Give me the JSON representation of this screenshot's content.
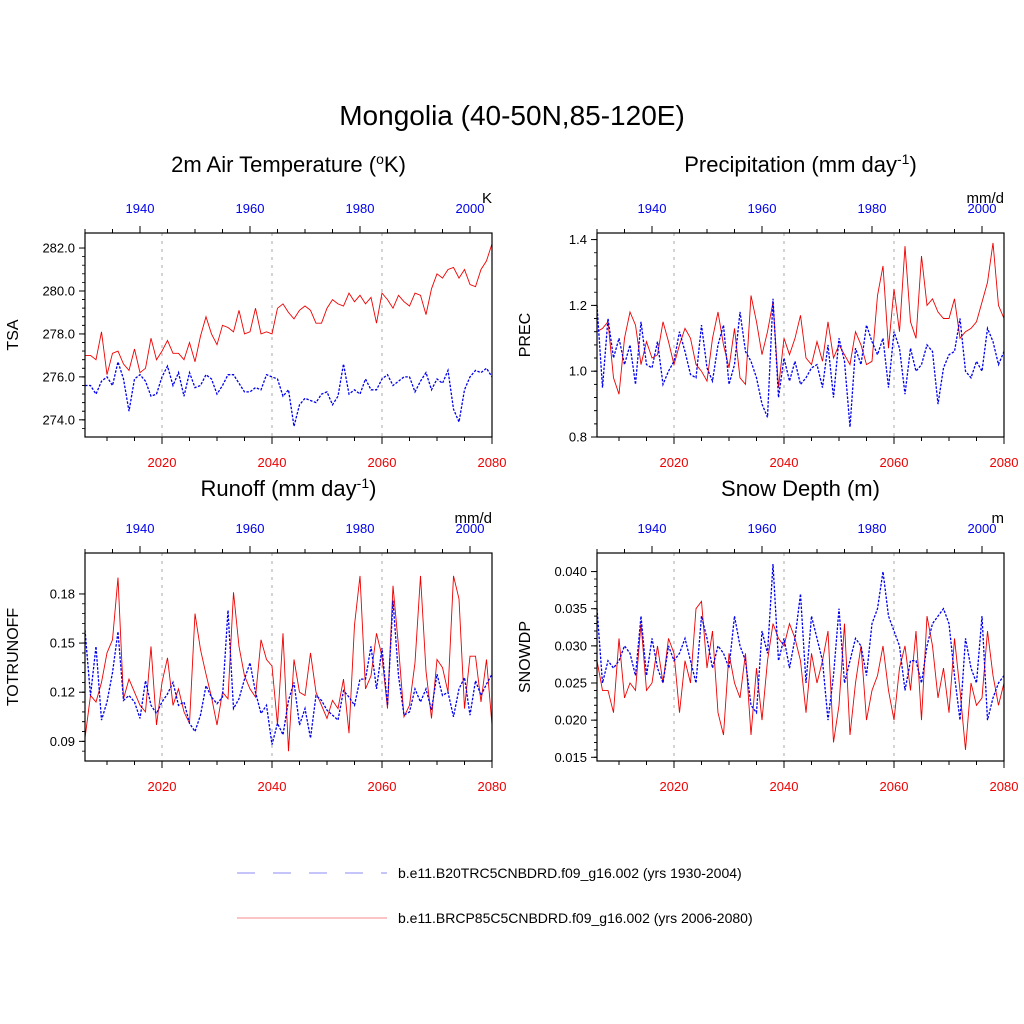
{
  "page": {
    "title": "Mongolia (40-50N,85-120E)"
  },
  "colors": {
    "hist": "#0000ee",
    "future": "#ee0000",
    "grid": "#aaaaaa"
  },
  "legend": {
    "items": [
      {
        "label": "b.e11.B20TRC5CNBDRD.f09_g16.002 (yrs 1930-2004)",
        "color": "#0000ee",
        "style": "dashed"
      },
      {
        "label": "b.e11.BRCP85C5CNBDRD.f09_g16.002 (yrs 2006-2080)",
        "color": "#ee0000",
        "style": "solid"
      }
    ]
  },
  "chart_data": [
    {
      "type": "line",
      "title_main": "2m Air Temperature (",
      "title_sup": "o",
      "title_tail": "K)",
      "ylabel": "TSA",
      "units": "K",
      "ylim": [
        273.2,
        282.7
      ],
      "yticks": [
        274.0,
        276.0,
        278.0,
        280.0,
        282.0
      ],
      "ytick_labels": [
        "274.0",
        "276.0",
        "278.0",
        "280.0",
        "282.0"
      ],
      "future_x": [
        2006,
        2080
      ],
      "hist_x": [
        1930,
        2004
      ],
      "future_ticks": [
        "2020",
        "2040",
        "2060",
        "2080"
      ],
      "hist_ticks": [
        "1940",
        "1960",
        "1980",
        "2000"
      ],
      "series": [
        {
          "name": "b.e11.BRCP85C5CNBDRD.f09_g16.002 (yrs 2006-2080)",
          "period": "future",
          "values": [
            277.0,
            277.0,
            276.8,
            278.1,
            276.1,
            277.1,
            277.2,
            276.6,
            276.3,
            277.3,
            276.2,
            276.4,
            277.8,
            276.8,
            277.2,
            277.7,
            277.1,
            277.1,
            276.8,
            277.6,
            276.7,
            277.9,
            278.8,
            278.0,
            277.5,
            278.4,
            278.3,
            278.1,
            279.1,
            278.0,
            278.1,
            279.2,
            278.0,
            278.1,
            278.0,
            279.2,
            279.4,
            279.0,
            278.7,
            279.1,
            279.3,
            279.1,
            278.5,
            278.5,
            279.2,
            279.6,
            279.4,
            279.3,
            279.9,
            279.5,
            279.8,
            279.4,
            279.7,
            278.5,
            279.9,
            279.6,
            279.2,
            279.8,
            279.5,
            279.3,
            279.9,
            279.8,
            278.9,
            280.1,
            280.8,
            280.6,
            281.0,
            281.1,
            280.6,
            281.0,
            280.3,
            280.2,
            281.0,
            281.4,
            282.2
          ]
        },
        {
          "name": "b.e11.B20TRC5CNBDRD.f09_g16.002 (yrs 1930-2004)",
          "period": "hist",
          "values": [
            275.6,
            275.6,
            275.2,
            275.8,
            276.0,
            275.6,
            276.7,
            275.9,
            274.4,
            275.9,
            276.1,
            275.8,
            275.1,
            275.2,
            276.0,
            276.5,
            275.6,
            276.2,
            275.1,
            276.2,
            275.5,
            275.6,
            276.1,
            275.9,
            275.2,
            275.6,
            276.1,
            276.1,
            275.7,
            275.3,
            275.3,
            275.5,
            275.4,
            276.1,
            276.0,
            275.9,
            275.1,
            275.4,
            273.7,
            274.7,
            275.0,
            274.9,
            274.8,
            275.2,
            275.3,
            274.7,
            275.1,
            276.6,
            275.2,
            275.4,
            275.2,
            275.9,
            275.4,
            275.4,
            275.9,
            276.1,
            275.6,
            275.8,
            276.0,
            276.0,
            275.3,
            275.8,
            276.2,
            275.4,
            275.9,
            275.7,
            276.3,
            274.5,
            273.9,
            275.4,
            276.0,
            276.3,
            276.2,
            276.4,
            276.0
          ]
        }
      ]
    },
    {
      "type": "line",
      "title_main": "Precipitation (mm day",
      "title_sup": "-1",
      "title_tail": ")",
      "ylabel": "PREC",
      "units": "mm/d",
      "ylim": [
        0.8,
        1.42
      ],
      "yticks": [
        0.8,
        1.0,
        1.2,
        1.4
      ],
      "ytick_labels": [
        "0.8",
        "1.0",
        "1.2",
        "1.4"
      ],
      "future_x": [
        2006,
        2080
      ],
      "hist_x": [
        1930,
        2004
      ],
      "future_ticks": [
        "2020",
        "2040",
        "2060",
        "2080"
      ],
      "hist_ticks": [
        "1940",
        "1960",
        "1980",
        "2000"
      ],
      "series": [
        {
          "name": "b.e11.BRCP85C5CNBDRD.f09_g16.002 (yrs 2006-2080)",
          "period": "future",
          "values": [
            1.12,
            1.13,
            1.15,
            0.98,
            0.93,
            1.1,
            1.18,
            1.14,
            1.02,
            1.09,
            1.04,
            1.05,
            1.15,
            1.09,
            1.02,
            1.08,
            1.13,
            1.1,
            1.02,
            1.0,
            0.97,
            1.1,
            1.18,
            1.08,
            1.01,
            1.13,
            0.98,
            0.96,
            1.23,
            1.15,
            1.05,
            1.12,
            1.21,
            0.95,
            1.1,
            1.05,
            1.1,
            1.17,
            1.04,
            1.02,
            1.09,
            1.03,
            1.15,
            1.04,
            1.08,
            1.05,
            1.02,
            1.12,
            1.08,
            1.02,
            1.03,
            1.23,
            1.32,
            1.07,
            1.25,
            1.12,
            1.38,
            1.15,
            1.1,
            1.35,
            1.2,
            1.22,
            1.18,
            1.16,
            1.16,
            1.22,
            1.1,
            1.12,
            1.13,
            1.15,
            1.21,
            1.27,
            1.39,
            1.2,
            1.16
          ]
        },
        {
          "name": "b.e11.B20TRC5CNBDRD.f09_g16.002 (yrs 1930-2004)",
          "period": "hist",
          "values": [
            1.2,
            0.95,
            1.16,
            1.04,
            1.1,
            1.02,
            1.08,
            0.96,
            1.15,
            1.02,
            1.01,
            1.09,
            0.96,
            1.0,
            1.03,
            1.12,
            1.06,
            0.99,
            0.98,
            1.14,
            1.01,
            0.97,
            1.08,
            1.14,
            0.96,
            1.02,
            1.18,
            1.06,
            1.03,
            0.98,
            0.9,
            0.86,
            1.22,
            0.92,
            1.04,
            0.97,
            1.03,
            0.96,
            0.98,
            1.01,
            1.02,
            0.95,
            1.08,
            0.92,
            1.1,
            1.03,
            0.83,
            1.07,
            1.02,
            1.14,
            1.09,
            1.05,
            1.1,
            0.95,
            1.12,
            1.07,
            0.93,
            1.07,
            1.0,
            1.02,
            1.08,
            1.06,
            0.9,
            1.01,
            1.05,
            1.06,
            1.16,
            1.0,
            0.98,
            1.03,
            1.0,
            1.13,
            1.09,
            1.02,
            1.06
          ]
        }
      ]
    },
    {
      "type": "line",
      "title_main": "Runoff (mm day",
      "title_sup": "-1",
      "title_tail": ")",
      "ylabel": "TOTRUNOFF",
      "units": "mm/d",
      "ylim": [
        0.078,
        0.205
      ],
      "yticks": [
        0.09,
        0.12,
        0.15,
        0.18
      ],
      "ytick_labels": [
        "0.09",
        "0.12",
        "0.15",
        "0.18"
      ],
      "future_x": [
        2006,
        2080
      ],
      "hist_x": [
        1930,
        2004
      ],
      "future_ticks": [
        "2020",
        "2040",
        "2060",
        "2080"
      ],
      "hist_ticks": [
        "1940",
        "1960",
        "1980",
        "2000"
      ],
      "series": [
        {
          "name": "b.e11.BRCP85C5CNBDRD.f09_g16.002 (yrs 2006-2080)",
          "period": "future",
          "values": [
            0.092,
            0.118,
            0.114,
            0.126,
            0.144,
            0.152,
            0.19,
            0.116,
            0.128,
            0.12,
            0.112,
            0.108,
            0.148,
            0.1,
            0.126,
            0.141,
            0.112,
            0.122,
            0.108,
            0.101,
            0.168,
            0.146,
            0.131,
            0.117,
            0.1,
            0.12,
            0.116,
            0.181,
            0.148,
            0.13,
            0.122,
            0.117,
            0.152,
            0.14,
            0.136,
            0.1,
            0.156,
            0.084,
            0.14,
            0.12,
            0.118,
            0.144,
            0.12,
            0.112,
            0.104,
            0.115,
            0.11,
            0.128,
            0.095,
            0.161,
            0.191,
            0.122,
            0.13,
            0.156,
            0.142,
            0.11,
            0.185,
            0.148,
            0.105,
            0.112,
            0.138,
            0.191,
            0.133,
            0.104,
            0.14,
            0.135,
            0.12,
            0.191,
            0.177,
            0.11,
            0.142,
            0.142,
            0.114,
            0.14,
            0.1
          ]
        },
        {
          "name": "b.e11.B20TRC5CNBDRD.f09_g16.002 (yrs 1930-2004)",
          "period": "hist",
          "values": [
            0.158,
            0.118,
            0.148,
            0.103,
            0.114,
            0.132,
            0.157,
            0.115,
            0.118,
            0.114,
            0.104,
            0.127,
            0.112,
            0.107,
            0.114,
            0.119,
            0.126,
            0.112,
            0.114,
            0.101,
            0.096,
            0.106,
            0.124,
            0.117,
            0.113,
            0.117,
            0.17,
            0.11,
            0.116,
            0.128,
            0.138,
            0.12,
            0.107,
            0.112,
            0.088,
            0.101,
            0.094,
            0.115,
            0.126,
            0.1,
            0.11,
            0.092,
            0.118,
            0.115,
            0.109,
            0.106,
            0.103,
            0.121,
            0.117,
            0.112,
            0.128,
            0.128,
            0.148,
            0.122,
            0.147,
            0.112,
            0.176,
            0.13,
            0.106,
            0.108,
            0.122,
            0.114,
            0.122,
            0.109,
            0.131,
            0.118,
            0.12,
            0.105,
            0.122,
            0.129,
            0.106,
            0.127,
            0.118,
            0.125,
            0.131
          ]
        }
      ]
    },
    {
      "type": "line",
      "title_main": "Snow Depth (m)",
      "title_sup": "",
      "title_tail": "",
      "ylabel": "SNOWDP",
      "units": "m",
      "ylim": [
        0.0145,
        0.0425
      ],
      "yticks": [
        0.015,
        0.02,
        0.025,
        0.03,
        0.035,
        0.04
      ],
      "ytick_labels": [
        "0.015",
        "0.020",
        "0.025",
        "0.030",
        "0.035",
        "0.040"
      ],
      "future_x": [
        2006,
        2080
      ],
      "hist_x": [
        1930,
        2004
      ],
      "future_ticks": [
        "2020",
        "2040",
        "2060",
        "2080"
      ],
      "hist_ticks": [
        "1940",
        "1960",
        "1980",
        "2000"
      ],
      "series": [
        {
          "name": "b.e11.BRCP85C5CNBDRD.f09_g16.002 (yrs 2006-2080)",
          "period": "future",
          "values": [
            0.028,
            0.024,
            0.024,
            0.021,
            0.031,
            0.023,
            0.025,
            0.024,
            0.033,
            0.024,
            0.025,
            0.03,
            0.025,
            0.031,
            0.029,
            0.021,
            0.028,
            0.025,
            0.035,
            0.036,
            0.027,
            0.032,
            0.021,
            0.018,
            0.029,
            0.025,
            0.023,
            0.029,
            0.018,
            0.027,
            0.02,
            0.028,
            0.033,
            0.031,
            0.03,
            0.033,
            0.031,
            0.028,
            0.021,
            0.029,
            0.025,
            0.028,
            0.032,
            0.017,
            0.022,
            0.033,
            0.018,
            0.025,
            0.03,
            0.02,
            0.024,
            0.026,
            0.03,
            0.024,
            0.02,
            0.027,
            0.03,
            0.024,
            0.032,
            0.02,
            0.034,
            0.03,
            0.023,
            0.027,
            0.021,
            0.031,
            0.024,
            0.016,
            0.025,
            0.022,
            0.023,
            0.032,
            0.026,
            0.022,
            0.025
          ]
        },
        {
          "name": "b.e11.B20TRC5CNBDRD.f09_g16.002 (yrs 1930-2004)",
          "period": "hist",
          "values": [
            0.035,
            0.025,
            0.028,
            0.027,
            0.028,
            0.03,
            0.029,
            0.026,
            0.034,
            0.026,
            0.031,
            0.027,
            0.025,
            0.03,
            0.028,
            0.029,
            0.031,
            0.028,
            0.025,
            0.034,
            0.031,
            0.027,
            0.03,
            0.029,
            0.027,
            0.034,
            0.03,
            0.028,
            0.022,
            0.021,
            0.032,
            0.029,
            0.041,
            0.028,
            0.031,
            0.027,
            0.031,
            0.037,
            0.025,
            0.034,
            0.031,
            0.028,
            0.02,
            0.026,
            0.035,
            0.025,
            0.028,
            0.031,
            0.03,
            0.026,
            0.033,
            0.035,
            0.04,
            0.034,
            0.032,
            0.03,
            0.024,
            0.028,
            0.028,
            0.025,
            0.03,
            0.033,
            0.034,
            0.035,
            0.033,
            0.026,
            0.02,
            0.031,
            0.027,
            0.025,
            0.034,
            0.02,
            0.023,
            0.025,
            0.026
          ]
        }
      ]
    }
  ]
}
